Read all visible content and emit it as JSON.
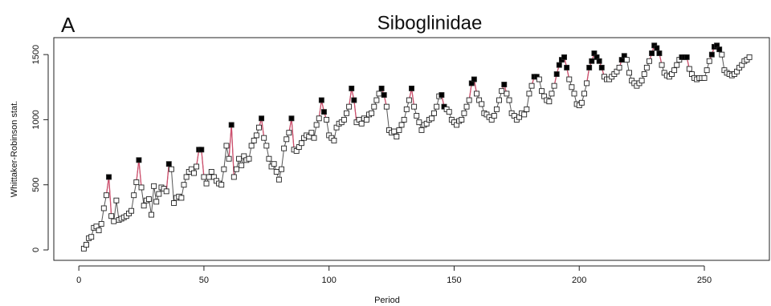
{
  "chart_data": {
    "type": "line",
    "title": "Siboglinidae",
    "panel_label": "A",
    "x_label": "Period",
    "y_label": "Whittaker-Robinson stat.",
    "xlim": [
      -10,
      276
    ],
    "xticks": [
      0,
      50,
      100,
      150,
      200,
      250
    ],
    "ylim": [
      -80,
      1630
    ],
    "yticks": [
      0,
      500,
      1000,
      1500
    ],
    "line_color": "#555555",
    "highlight_color": "#d0506e",
    "x": [
      2,
      3,
      4,
      5,
      6,
      7,
      8,
      9,
      10,
      11,
      12,
      13,
      14,
      15,
      16,
      17,
      18,
      19,
      20,
      21,
      22,
      23,
      24,
      25,
      26,
      27,
      28,
      29,
      30,
      31,
      32,
      33,
      34,
      35,
      36,
      37,
      38,
      39,
      40,
      41,
      42,
      43,
      44,
      45,
      46,
      47,
      48,
      49,
      50,
      51,
      52,
      53,
      54,
      55,
      56,
      57,
      58,
      59,
      60,
      61,
      62,
      63,
      64,
      65,
      66,
      67,
      68,
      69,
      70,
      71,
      72,
      73,
      74,
      75,
      76,
      77,
      78,
      79,
      80,
      81,
      82,
      83,
      84,
      85,
      86,
      87,
      88,
      89,
      90,
      91,
      92,
      93,
      94,
      95,
      96,
      97,
      98,
      99,
      100,
      101,
      102,
      103,
      104,
      105,
      106,
      107,
      108,
      109,
      110,
      111,
      112,
      113,
      114,
      115,
      116,
      117,
      118,
      119,
      120,
      121,
      122,
      123,
      124,
      125,
      126,
      127,
      128,
      129,
      130,
      131,
      132,
      133,
      134,
      135,
      136,
      137,
      138,
      139,
      140,
      141,
      142,
      143,
      144,
      145,
      146,
      147,
      148,
      149,
      150,
      151,
      152,
      153,
      154,
      155,
      156,
      157,
      158,
      159,
      160,
      161,
      162,
      163,
      164,
      165,
      166,
      167,
      168,
      169,
      170,
      171,
      172,
      173,
      174,
      175,
      176,
      177,
      178,
      179,
      180,
      181,
      182,
      183,
      184,
      185,
      186,
      187,
      188,
      189,
      190,
      191,
      192,
      193,
      194,
      195,
      196,
      197,
      198,
      199,
      200,
      201,
      202,
      203,
      204,
      205,
      206,
      207,
      208,
      209,
      210,
      211,
      212,
      213,
      214,
      215,
      216,
      217,
      218,
      219,
      220,
      221,
      222,
      223,
      224,
      225,
      226,
      227,
      228,
      229,
      230,
      231,
      232,
      233,
      234,
      235,
      236,
      237,
      238,
      239,
      240,
      241,
      242,
      243,
      244,
      245,
      246,
      247,
      248,
      249,
      250,
      251,
      252,
      253,
      254,
      255,
      256,
      257,
      258,
      259,
      260,
      261,
      262,
      263,
      264,
      265,
      266,
      267,
      268
    ],
    "values": [
      10,
      40,
      90,
      100,
      170,
      180,
      150,
      200,
      320,
      420,
      560,
      260,
      220,
      380,
      230,
      240,
      250,
      260,
      280,
      300,
      420,
      520,
      690,
      480,
      340,
      380,
      390,
      270,
      490,
      370,
      430,
      480,
      470,
      450,
      660,
      620,
      360,
      400,
      410,
      400,
      500,
      560,
      600,
      620,
      590,
      640,
      770,
      770,
      560,
      510,
      560,
      600,
      560,
      530,
      510,
      500,
      620,
      800,
      700,
      960,
      560,
      620,
      700,
      650,
      720,
      690,
      700,
      800,
      840,
      880,
      940,
      1010,
      860,
      800,
      700,
      640,
      660,
      600,
      540,
      620,
      780,
      850,
      900,
      1010,
      770,
      760,
      790,
      820,
      860,
      880,
      870,
      900,
      860,
      960,
      1010,
      1150,
      1060,
      1000,
      880,
      860,
      840,
      940,
      970,
      980,
      1000,
      1050,
      1100,
      1240,
      1150,
      980,
      1000,
      970,
      1010,
      1000,
      1040,
      1050,
      1100,
      1150,
      1200,
      1240,
      1190,
      1100,
      920,
      900,
      910,
      870,
      920,
      960,
      1000,
      1080,
      1150,
      1240,
      1100,
      1030,
      980,
      920,
      960,
      970,
      1000,
      1010,
      1050,
      1100,
      1180,
      1190,
      1100,
      1080,
      1060,
      1000,
      980,
      960,
      990,
      1000,
      1050,
      1100,
      1150,
      1280,
      1310,
      1200,
      1150,
      1120,
      1050,
      1040,
      1020,
      1000,
      1030,
      1080,
      1150,
      1220,
      1270,
      1200,
      1150,
      1050,
      1030,
      1000,
      1020,
      1050,
      1040,
      1080,
      1200,
      1260,
      1330,
      1330,
      1310,
      1220,
      1180,
      1150,
      1140,
      1200,
      1260,
      1350,
      1420,
      1460,
      1480,
      1400,
      1310,
      1250,
      1200,
      1120,
      1110,
      1130,
      1200,
      1280,
      1400,
      1450,
      1510,
      1480,
      1450,
      1400,
      1330,
      1310,
      1310,
      1330,
      1350,
      1370,
      1400,
      1460,
      1490,
      1460,
      1360,
      1300,
      1280,
      1260,
      1280,
      1300,
      1350,
      1400,
      1450,
      1510,
      1570,
      1550,
      1510,
      1420,
      1360,
      1340,
      1330,
      1350,
      1380,
      1420,
      1460,
      1480,
      1480,
      1480,
      1390,
      1350,
      1320,
      1310,
      1320,
      1320,
      1320,
      1380,
      1450,
      1500,
      1560,
      1570,
      1540,
      1500,
      1380,
      1360,
      1350,
      1340,
      1350,
      1370,
      1400,
      1420,
      1450,
      1460,
      1480
    ],
    "filled_x": [
      12,
      24,
      36,
      48,
      49,
      61,
      73,
      85,
      97,
      98,
      109,
      110,
      121,
      122,
      133,
      145,
      146,
      157,
      158,
      170,
      182,
      183,
      191,
      192,
      193,
      194,
      195,
      204,
      205,
      206,
      207,
      208,
      209,
      217,
      218,
      229,
      230,
      231,
      232,
      241,
      242,
      243,
      253,
      254,
      255,
      256
    ]
  }
}
